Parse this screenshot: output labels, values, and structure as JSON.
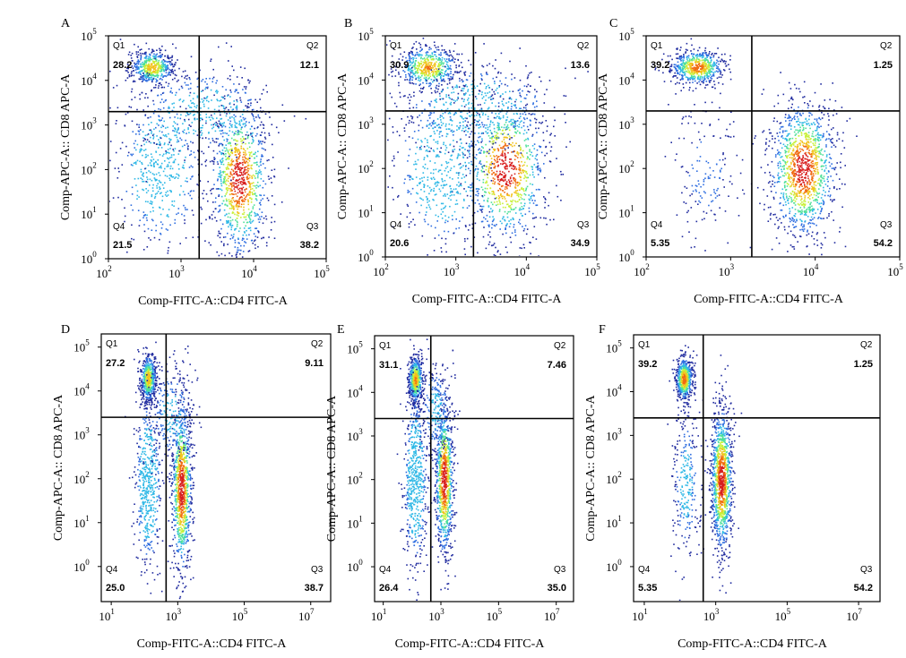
{
  "chart_data": [
    {
      "panel": "A",
      "type": "scatter",
      "xlabel": "Comp-FITC-A::CD4 FITC-A",
      "ylabel": "Comp-APC-A:: CD8 APC-A",
      "xlim_exp": [
        2,
        5
      ],
      "ylim_exp": [
        0,
        5
      ],
      "scale": "log",
      "x_ticks": [
        {
          "base": "10",
          "exp": "2",
          "v": 2
        },
        {
          "base": "10",
          "exp": "3",
          "v": 3
        },
        {
          "base": "10",
          "exp": "4",
          "v": 4
        },
        {
          "base": "10",
          "exp": "5",
          "v": 5
        }
      ],
      "y_ticks": [
        {
          "base": "10",
          "exp": "0",
          "v": 0
        },
        {
          "base": "10",
          "exp": "1",
          "v": 1
        },
        {
          "base": "10",
          "exp": "2",
          "v": 2
        },
        {
          "base": "10",
          "exp": "3",
          "v": 3
        },
        {
          "base": "10",
          "exp": "4",
          "v": 4
        },
        {
          "base": "10",
          "exp": "5",
          "v": 5
        }
      ],
      "gate": {
        "x": 3.25,
        "y": 3.3
      },
      "quadrants": {
        "Q1": {
          "label": "Q1",
          "value": "28.2"
        },
        "Q2": {
          "label": "Q2",
          "value": "12.1"
        },
        "Q3": {
          "label": "Q3",
          "value": "38.2"
        },
        "Q4": {
          "label": "Q4",
          "value": "21.5"
        }
      },
      "populations": [
        {
          "cx": 2.6,
          "cy": 4.3,
          "sx": 0.15,
          "sy": 0.2,
          "n": 520,
          "rot": 0
        },
        {
          "cx": 3.8,
          "cy": 1.8,
          "sx": 0.2,
          "sy": 0.9,
          "n": 1000,
          "rot": 0
        },
        {
          "cx": 2.7,
          "cy": 2.0,
          "sx": 0.3,
          "sy": 0.9,
          "n": 480,
          "rot": 0
        },
        {
          "cx": 3.3,
          "cy": 3.3,
          "sx": 0.5,
          "sy": 0.5,
          "n": 380,
          "rot": 0
        }
      ]
    },
    {
      "panel": "B",
      "type": "scatter",
      "xlabel": "Comp-FITC-A::CD4 FITC-A",
      "ylabel": "Comp-APC-A:: CD8 APC-A",
      "xlim_exp": [
        2,
        5
      ],
      "ylim_exp": [
        0,
        5
      ],
      "scale": "log",
      "x_ticks": [
        {
          "base": "10",
          "exp": "2",
          "v": 2
        },
        {
          "base": "10",
          "exp": "3",
          "v": 3
        },
        {
          "base": "10",
          "exp": "4",
          "v": 4
        },
        {
          "base": "10",
          "exp": "5",
          "v": 5
        }
      ],
      "y_ticks": [
        {
          "base": "10",
          "exp": "0",
          "v": 0
        },
        {
          "base": "10",
          "exp": "1",
          "v": 1
        },
        {
          "base": "10",
          "exp": "2",
          "v": 2
        },
        {
          "base": "10",
          "exp": "3",
          "v": 3
        },
        {
          "base": "10",
          "exp": "4",
          "v": 4
        },
        {
          "base": "10",
          "exp": "5",
          "v": 5
        }
      ],
      "gate": {
        "x": 3.25,
        "y": 3.3
      },
      "quadrants": {
        "Q1": {
          "label": "Q1",
          "value": "30.9"
        },
        "Q2": {
          "label": "Q2",
          "value": "13.6"
        },
        "Q3": {
          "label": "Q3",
          "value": "34.9"
        },
        "Q4": {
          "label": "Q4",
          "value": "20.6"
        }
      },
      "populations": [
        {
          "cx": 2.6,
          "cy": 4.3,
          "sx": 0.22,
          "sy": 0.25,
          "n": 540,
          "rot": 0
        },
        {
          "cx": 3.7,
          "cy": 2.0,
          "sx": 0.3,
          "sy": 0.85,
          "n": 900,
          "rot": 0
        },
        {
          "cx": 2.8,
          "cy": 2.0,
          "sx": 0.35,
          "sy": 0.9,
          "n": 500,
          "rot": 0
        },
        {
          "cx": 3.3,
          "cy": 3.4,
          "sx": 0.55,
          "sy": 0.5,
          "n": 420,
          "rot": 0
        }
      ]
    },
    {
      "panel": "C",
      "type": "scatter",
      "xlabel": "Comp-FITC-A::CD4 FITC-A",
      "ylabel": "Comp-APC-A:: CD8 APC-A",
      "xlim_exp": [
        2,
        5
      ],
      "ylim_exp": [
        0,
        5
      ],
      "scale": "log",
      "x_ticks": [
        {
          "base": "10",
          "exp": "2",
          "v": 2
        },
        {
          "base": "10",
          "exp": "3",
          "v": 3
        },
        {
          "base": "10",
          "exp": "4",
          "v": 4
        },
        {
          "base": "10",
          "exp": "5",
          "v": 5
        }
      ],
      "y_ticks": [
        {
          "base": "10",
          "exp": "0",
          "v": 0
        },
        {
          "base": "10",
          "exp": "1",
          "v": 1
        },
        {
          "base": "10",
          "exp": "2",
          "v": 2
        },
        {
          "base": "10",
          "exp": "3",
          "v": 3
        },
        {
          "base": "10",
          "exp": "4",
          "v": 4
        },
        {
          "base": "10",
          "exp": "5",
          "v": 5
        }
      ],
      "gate": {
        "x": 3.25,
        "y": 3.3
      },
      "quadrants": {
        "Q1": {
          "label": "Q1",
          "value": "39.2"
        },
        "Q2": {
          "label": "Q2",
          "value": "1.25"
        },
        "Q3": {
          "label": "Q3",
          "value": "54.2"
        },
        "Q4": {
          "label": "Q4",
          "value": "5.35"
        }
      },
      "populations": [
        {
          "cx": 2.6,
          "cy": 4.3,
          "sx": 0.16,
          "sy": 0.2,
          "n": 600,
          "rot": 0
        },
        {
          "cx": 3.85,
          "cy": 2.0,
          "sx": 0.2,
          "sy": 0.8,
          "n": 1200,
          "rot": 0
        },
        {
          "cx": 2.7,
          "cy": 1.9,
          "sx": 0.2,
          "sy": 0.8,
          "n": 160,
          "rot": 0
        }
      ]
    },
    {
      "panel": "D",
      "type": "scatter",
      "xlabel": "Comp-FITC-A::CD4 FITC-A",
      "ylabel": "Comp-APC-A:: CD8 APC-A",
      "xlim_exp": [
        0.7,
        7.6
      ],
      "ylim_exp": [
        -0.8,
        5.3
      ],
      "scale": "log",
      "x_ticks": [
        {
          "base": "10",
          "exp": "1",
          "v": 1
        },
        {
          "base": "10",
          "exp": "3",
          "v": 3
        },
        {
          "base": "10",
          "exp": "5",
          "v": 5
        },
        {
          "base": "10",
          "exp": "7",
          "v": 7
        }
      ],
      "y_ticks": [
        {
          "base": "10",
          "exp": "0",
          "v": 0
        },
        {
          "base": "10",
          "exp": "1",
          "v": 1
        },
        {
          "base": "10",
          "exp": "2",
          "v": 2
        },
        {
          "base": "10",
          "exp": "3",
          "v": 3
        },
        {
          "base": "10",
          "exp": "4",
          "v": 4
        },
        {
          "base": "10",
          "exp": "5",
          "v": 5
        }
      ],
      "gate": {
        "x": 2.65,
        "y": 3.4
      },
      "quadrants": {
        "Q1": {
          "label": "Q1",
          "value": "27.2"
        },
        "Q2": {
          "label": "Q2",
          "value": "9.11"
        },
        "Q3": {
          "label": "Q3",
          "value": "38.7"
        },
        "Q4": {
          "label": "Q4",
          "value": "25.0"
        }
      },
      "populations": [
        {
          "cx": 2.1,
          "cy": 4.3,
          "sx": 0.12,
          "sy": 0.28,
          "n": 520,
          "rot": 0
        },
        {
          "cx": 3.1,
          "cy": 1.8,
          "sx": 0.15,
          "sy": 1.0,
          "n": 1000,
          "rot": 0
        },
        {
          "cx": 2.1,
          "cy": 1.9,
          "sx": 0.2,
          "sy": 1.0,
          "n": 520,
          "rot": 0
        },
        {
          "cx": 2.8,
          "cy": 3.5,
          "sx": 0.35,
          "sy": 0.6,
          "n": 260,
          "rot": 0
        }
      ]
    },
    {
      "panel": "E",
      "type": "scatter",
      "xlabel": "Comp-FITC-A::CD4 FITC-A",
      "ylabel": "Comp-APC-A:: CD8 APC-A",
      "xlim_exp": [
        0.7,
        7.6
      ],
      "ylim_exp": [
        -0.8,
        5.3
      ],
      "scale": "log",
      "x_ticks": [
        {
          "base": "10",
          "exp": "1",
          "v": 1
        },
        {
          "base": "10",
          "exp": "3",
          "v": 3
        },
        {
          "base": "10",
          "exp": "5",
          "v": 5
        },
        {
          "base": "10",
          "exp": "7",
          "v": 7
        }
      ],
      "y_ticks": [
        {
          "base": "10",
          "exp": "0",
          "v": 0
        },
        {
          "base": "10",
          "exp": "1",
          "v": 1
        },
        {
          "base": "10",
          "exp": "2",
          "v": 2
        },
        {
          "base": "10",
          "exp": "3",
          "v": 3
        },
        {
          "base": "10",
          "exp": "4",
          "v": 4
        },
        {
          "base": "10",
          "exp": "5",
          "v": 5
        }
      ],
      "gate": {
        "x": 2.65,
        "y": 3.4
      },
      "quadrants": {
        "Q1": {
          "label": "Q1",
          "value": "31.1"
        },
        "Q2": {
          "label": "Q2",
          "value": "7.46"
        },
        "Q3": {
          "label": "Q3",
          "value": "35.0"
        },
        "Q4": {
          "label": "Q4",
          "value": "26.4"
        }
      },
      "populations": [
        {
          "cx": 2.1,
          "cy": 4.3,
          "sx": 0.13,
          "sy": 0.28,
          "n": 560,
          "rot": 0
        },
        {
          "cx": 3.1,
          "cy": 2.0,
          "sx": 0.16,
          "sy": 0.9,
          "n": 900,
          "rot": 0
        },
        {
          "cx": 2.1,
          "cy": 2.0,
          "sx": 0.2,
          "sy": 1.0,
          "n": 560,
          "rot": 0
        },
        {
          "cx": 2.8,
          "cy": 3.6,
          "sx": 0.3,
          "sy": 0.6,
          "n": 240,
          "rot": 0
        }
      ]
    },
    {
      "panel": "F",
      "type": "scatter",
      "xlabel": "Comp-FITC-A::CD4 FITC-A",
      "ylabel": "Comp-APC-A:: CD8 APC-A",
      "xlim_exp": [
        0.7,
        7.6
      ],
      "ylim_exp": [
        -0.8,
        5.3
      ],
      "scale": "log",
      "x_ticks": [
        {
          "base": "10",
          "exp": "1",
          "v": 1
        },
        {
          "base": "10",
          "exp": "3",
          "v": 3
        },
        {
          "base": "10",
          "exp": "5",
          "v": 5
        },
        {
          "base": "10",
          "exp": "7",
          "v": 7
        }
      ],
      "y_ticks": [
        {
          "base": "10",
          "exp": "0",
          "v": 0
        },
        {
          "base": "10",
          "exp": "1",
          "v": 1
        },
        {
          "base": "10",
          "exp": "2",
          "v": 2
        },
        {
          "base": "10",
          "exp": "3",
          "v": 3
        },
        {
          "base": "10",
          "exp": "4",
          "v": 4
        },
        {
          "base": "10",
          "exp": "5",
          "v": 5
        }
      ],
      "gate": {
        "x": 2.65,
        "y": 3.4
      },
      "quadrants": {
        "Q1": {
          "label": "Q1",
          "value": "39.2"
        },
        "Q2": {
          "label": "Q2",
          "value": "1.25"
        },
        "Q3": {
          "label": "Q3",
          "value": "54.2"
        },
        "Q4": {
          "label": "Q4",
          "value": "5.35"
        }
      },
      "populations": [
        {
          "cx": 2.1,
          "cy": 4.3,
          "sx": 0.12,
          "sy": 0.25,
          "n": 600,
          "rot": 0
        },
        {
          "cx": 3.15,
          "cy": 2.0,
          "sx": 0.15,
          "sy": 0.85,
          "n": 1200,
          "rot": 0
        },
        {
          "cx": 2.15,
          "cy": 1.9,
          "sx": 0.2,
          "sy": 0.9,
          "n": 280,
          "rot": 0
        }
      ]
    }
  ],
  "colors": {
    "density": [
      "#1f2a9e",
      "#2f6ee0",
      "#2fb8e6",
      "#4fe09a",
      "#c8f03a",
      "#f2c21d",
      "#f06b12",
      "#d81f1f"
    ],
    "axis": "#000000",
    "gate": "#000000"
  }
}
